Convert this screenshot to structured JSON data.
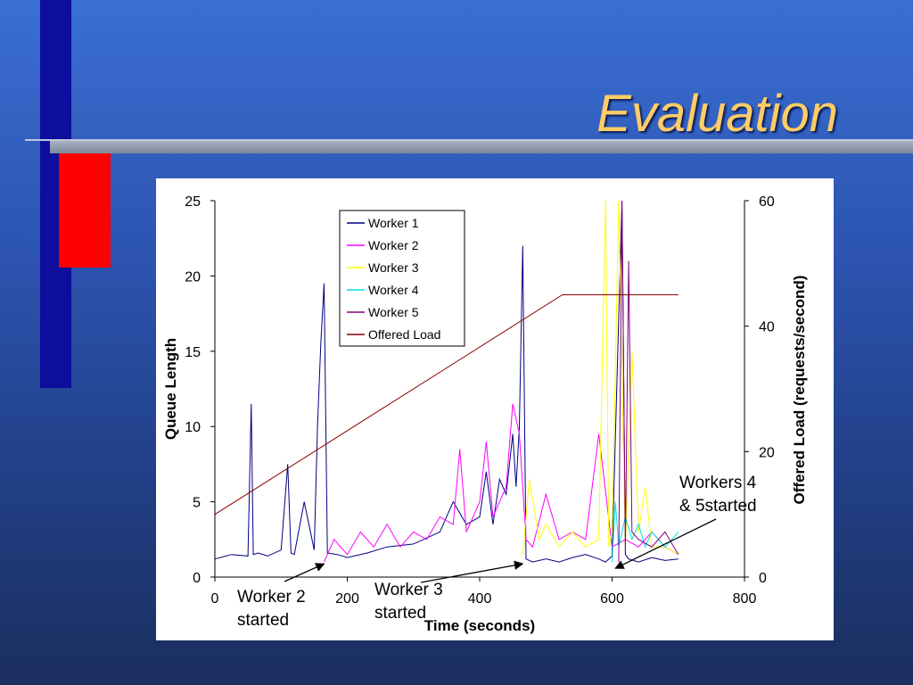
{
  "slide": {
    "title": "Evaluation"
  },
  "colors": {
    "worker1": "#000080",
    "worker2": "#ff00ff",
    "worker3": "#ffff00",
    "worker4": "#00e0e0",
    "worker5": "#800080",
    "offered_load": "#8b0000",
    "title": "#ffcc66"
  },
  "chart_data": {
    "type": "line",
    "title": "",
    "xlabel": "Time (seconds)",
    "ylabel": "Queue Length",
    "y2label": "Offered Load (requests/second)",
    "xlim": [
      0,
      800
    ],
    "ylim": [
      0,
      25
    ],
    "y2lim": [
      0,
      60
    ],
    "x_ticks": [
      "0",
      "200",
      "400",
      "600",
      "800"
    ],
    "y_ticks": [
      "0",
      "5",
      "10",
      "15",
      "20",
      "25"
    ],
    "y2_ticks": [
      "0",
      "20",
      "40",
      "60"
    ],
    "grid": false,
    "legend_position": "top-center",
    "series": [
      {
        "name": "Worker 1",
        "axis": "left",
        "color": "#000080",
        "x": [
          0,
          25,
          50,
          55,
          58,
          65,
          80,
          100,
          110,
          115,
          120,
          135,
          150,
          155,
          160,
          165,
          170,
          185,
          200,
          230,
          260,
          300,
          340,
          360,
          380,
          400,
          410,
          420,
          430,
          440,
          450,
          455,
          460,
          465,
          470,
          480,
          500,
          520,
          540,
          560,
          580,
          590,
          600,
          615,
          620,
          625,
          640,
          660,
          680,
          700
        ],
        "y": [
          1.2,
          1.5,
          1.4,
          11.5,
          1.5,
          1.6,
          1.4,
          1.8,
          7.5,
          1.6,
          1.5,
          5.0,
          1.8,
          10.0,
          15.5,
          19.5,
          1.6,
          1.5,
          1.3,
          1.6,
          2.0,
          2.2,
          3.0,
          5.0,
          3.5,
          4.0,
          7.0,
          3.5,
          6.5,
          5.5,
          9.5,
          6.0,
          10.0,
          22.0,
          1.2,
          1.0,
          1.2,
          1.0,
          1.3,
          1.5,
          1.2,
          1.0,
          1.4,
          25.0,
          1.5,
          1.2,
          1.0,
          1.3,
          1.1,
          1.2
        ]
      },
      {
        "name": "Worker 2",
        "axis": "left",
        "color": "#ff00ff",
        "x": [
          165,
          180,
          200,
          220,
          240,
          260,
          280,
          300,
          320,
          340,
          360,
          370,
          380,
          400,
          410,
          420,
          440,
          450,
          460,
          470,
          480,
          500,
          520,
          540,
          560,
          580,
          600,
          620,
          640,
          660,
          680,
          700
        ],
        "y": [
          1.0,
          2.5,
          1.5,
          3.0,
          2.0,
          3.5,
          2.0,
          3.0,
          2.5,
          4.0,
          3.5,
          8.5,
          3.0,
          5.0,
          9.0,
          4.0,
          6.0,
          11.5,
          9.5,
          2.5,
          2.0,
          5.5,
          2.5,
          3.0,
          2.5,
          9.5,
          2.0,
          2.5,
          2.0,
          3.0,
          2.0,
          1.5
        ]
      },
      {
        "name": "Worker 3",
        "axis": "left",
        "color": "#ffff00",
        "x": [
          465,
          475,
          490,
          500,
          520,
          540,
          560,
          580,
          590,
          595,
          600,
          610,
          620,
          630,
          640,
          650,
          660,
          680,
          700
        ],
        "y": [
          1.5,
          6.5,
          2.5,
          3.5,
          2.0,
          3.0,
          2.0,
          2.5,
          25.0,
          2.0,
          3.0,
          25.0,
          2.0,
          15.0,
          3.0,
          6.0,
          2.0,
          2.0,
          1.5
        ]
      },
      {
        "name": "Worker 4",
        "axis": "left",
        "color": "#00e0e0",
        "x": [
          600,
          605,
          610,
          620,
          630,
          640,
          650,
          660,
          680,
          700
        ],
        "y": [
          1.0,
          5.0,
          2.0,
          4.0,
          2.5,
          3.5,
          2.0,
          3.0,
          2.0,
          3.0
        ]
      },
      {
        "name": "Worker 5",
        "axis": "left",
        "color": "#800080",
        "x": [
          610,
          615,
          620,
          625,
          630,
          640,
          660,
          680,
          700
        ],
        "y": [
          1.0,
          25.0,
          2.0,
          21.0,
          3.0,
          2.5,
          2.0,
          3.0,
          1.5
        ]
      },
      {
        "name": "Offered Load",
        "axis": "right",
        "color": "#8b0000",
        "x": [
          0,
          525,
          700
        ],
        "y": [
          10,
          45,
          45
        ]
      }
    ],
    "annotations": [
      {
        "text": "Worker 2\nstarted",
        "x": 165,
        "y": 1.0
      },
      {
        "text": "Worker 3\nstarted",
        "x": 465,
        "y": 1.0
      },
      {
        "text": "Workers 4\n& 5started",
        "x": 605,
        "y": 0.7
      }
    ]
  }
}
